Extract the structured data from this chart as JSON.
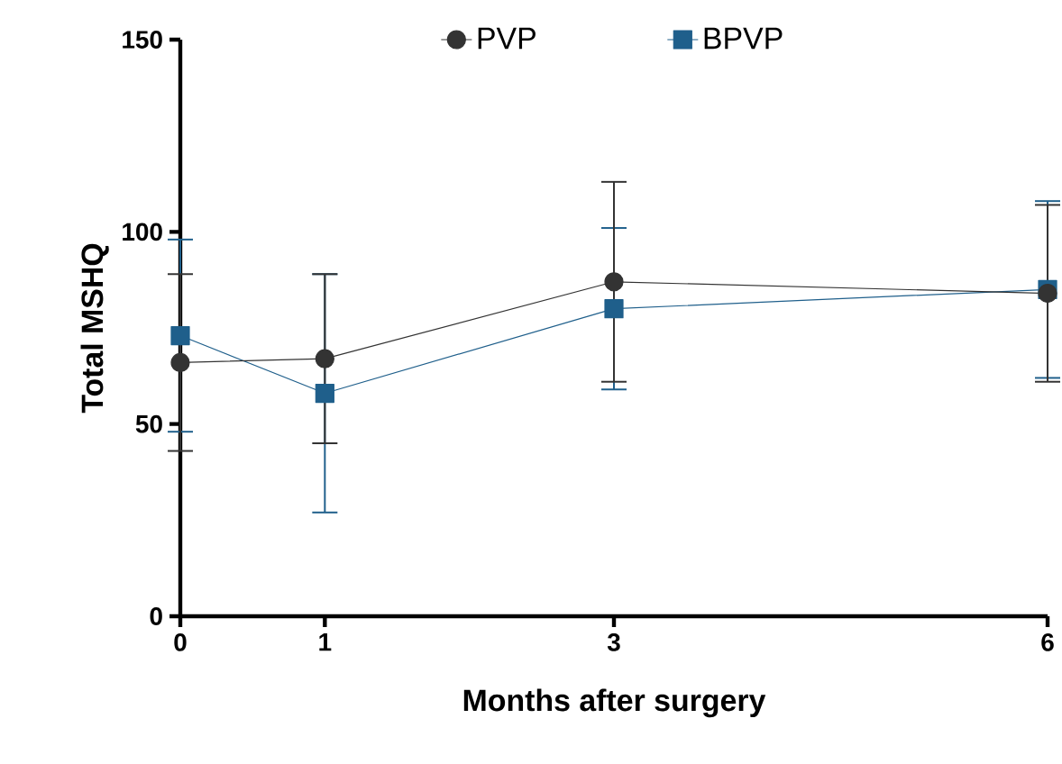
{
  "chart_data": {
    "type": "line",
    "xlabel": "Months after surgery",
    "ylabel": "Total MSHQ",
    "x": [
      0,
      1,
      3,
      6
    ],
    "xlim": [
      0,
      6
    ],
    "xticks": [
      0,
      1,
      3,
      6
    ],
    "ylim": [
      0,
      150
    ],
    "yticks": [
      0,
      50,
      100,
      150
    ],
    "legend": "top",
    "line_style": "solid",
    "series": [
      {
        "name": "PVP",
        "color": "#333333",
        "marker": "circle",
        "values": [
          66,
          67,
          87,
          84
        ],
        "errors": [
          23,
          22,
          26,
          23
        ]
      },
      {
        "name": "BPVP",
        "color": "#1f5f8b",
        "marker": "square",
        "values": [
          73,
          58,
          80,
          85
        ],
        "errors": [
          25,
          31,
          21,
          23
        ]
      }
    ]
  }
}
